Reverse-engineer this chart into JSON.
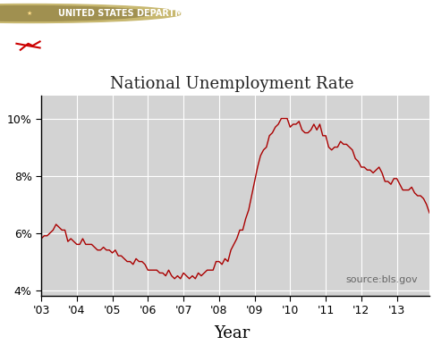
{
  "title": "National Unemployment Rate",
  "xlabel": "Year",
  "source_text": "source:bls.gov",
  "line_color": "#aa0000",
  "bg_color": "#d3d3d3",
  "ylim": [
    3.8,
    10.8
  ],
  "yticks": [
    4,
    6,
    8,
    10
  ],
  "ytick_labels": [
    "4%",
    "6%",
    "8%",
    "10%"
  ],
  "header_dark_color": "#5a0000",
  "header_red_color": "#cc0000",
  "xtick_positions": [
    2003,
    2004,
    2005,
    2006,
    2007,
    2008,
    2009,
    2010,
    2011,
    2012,
    2013
  ],
  "xtick_labels": [
    "'03",
    "'04",
    "'05",
    "'06",
    "'07",
    "'08",
    "'09",
    "'10",
    "'11",
    "'12",
    "'13"
  ],
  "unemployment_data": [
    5.8,
    5.9,
    5.9,
    6.0,
    6.1,
    6.3,
    6.2,
    6.1,
    6.1,
    5.7,
    5.8,
    5.7,
    5.6,
    5.6,
    5.8,
    5.6,
    5.6,
    5.6,
    5.5,
    5.4,
    5.4,
    5.5,
    5.4,
    5.4,
    5.3,
    5.4,
    5.2,
    5.2,
    5.1,
    5.0,
    5.0,
    4.9,
    5.1,
    5.0,
    5.0,
    4.9,
    4.7,
    4.7,
    4.7,
    4.7,
    4.6,
    4.6,
    4.5,
    4.7,
    4.5,
    4.4,
    4.5,
    4.4,
    4.6,
    4.5,
    4.4,
    4.5,
    4.4,
    4.6,
    4.5,
    4.6,
    4.7,
    4.7,
    4.7,
    5.0,
    5.0,
    4.9,
    5.1,
    5.0,
    5.4,
    5.6,
    5.8,
    6.1,
    6.1,
    6.5,
    6.8,
    7.3,
    7.8,
    8.3,
    8.7,
    8.9,
    9.0,
    9.4,
    9.5,
    9.7,
    9.8,
    10.0,
    10.0,
    10.0,
    9.7,
    9.8,
    9.8,
    9.9,
    9.6,
    9.5,
    9.5,
    9.6,
    9.8,
    9.6,
    9.8,
    9.4,
    9.4,
    9.0,
    8.9,
    9.0,
    9.0,
    9.2,
    9.1,
    9.1,
    9.0,
    8.9,
    8.6,
    8.5,
    8.3,
    8.3,
    8.2,
    8.2,
    8.1,
    8.2,
    8.3,
    8.1,
    7.8,
    7.8,
    7.7,
    7.9,
    7.9,
    7.7,
    7.5,
    7.5,
    7.5,
    7.6,
    7.4,
    7.3,
    7.3,
    7.2,
    7.0,
    6.7
  ]
}
